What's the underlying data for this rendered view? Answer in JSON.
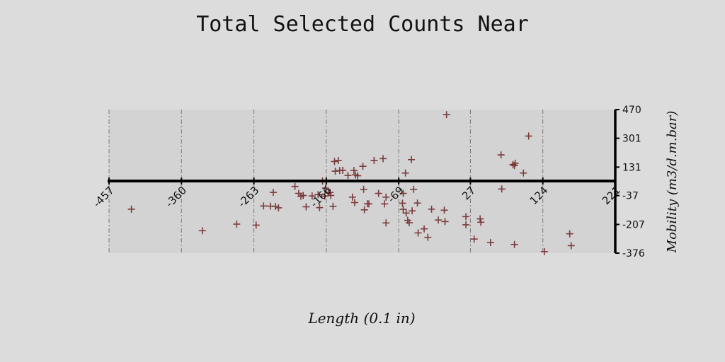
{
  "chart_data": {
    "type": "scatter",
    "title": "Total Selected Counts Near",
    "xlabel": "Length (0.1 in)",
    "ylabel": "Mobility (m3/d.m.bar)",
    "xlim": [
      -457,
      221
    ],
    "ylim": [
      -376,
      470
    ],
    "xticks": [
      -457,
      -360,
      -263,
      -166,
      -69,
      27,
      124,
      221
    ],
    "xtick_labels": [
      "-457",
      "-360",
      "-263",
      "-166",
      "-69",
      "27",
      "124",
      "221"
    ],
    "yticks": [
      470,
      301,
      131,
      -37,
      -207,
      -376
    ],
    "ytick_labels": [
      "470",
      "301",
      "131",
      "-37",
      "-207",
      "-376"
    ],
    "grid": {
      "x": true,
      "y": false
    },
    "marker": "+",
    "colors": {
      "background": "#dcdcdc",
      "plot_area": "#d3d3d3",
      "points": "#7a3b3b",
      "axis": "#000000",
      "grid": "#777777"
    },
    "series": [
      {
        "values": [
          [
            -427,
            -117
          ],
          [
            -332,
            -244
          ],
          [
            -286,
            -205
          ],
          [
            -260,
            -211
          ],
          [
            -250,
            -98
          ],
          [
            -241,
            -99
          ],
          [
            -237,
            -18
          ],
          [
            -234,
            -101
          ],
          [
            -230,
            -109
          ],
          [
            -208,
            17
          ],
          [
            -203,
            -24
          ],
          [
            -200,
            -41
          ],
          [
            -197,
            -36
          ],
          [
            -193,
            -103
          ],
          [
            -185,
            -39
          ],
          [
            -177,
            -31
          ],
          [
            -175,
            -108
          ],
          [
            -171,
            49
          ],
          [
            -168,
            -40
          ],
          [
            -167,
            7
          ],
          [
            -163,
            -20
          ],
          [
            -161,
            -18
          ],
          [
            -160,
            -36
          ],
          [
            -157,
            -100
          ],
          [
            -155,
            164
          ],
          [
            -154,
            107
          ],
          [
            -150,
            170
          ],
          [
            -148,
            111
          ],
          [
            -144,
            112
          ],
          [
            -137,
            82
          ],
          [
            -131,
            -46
          ],
          [
            -128,
            -78
          ],
          [
            -129,
            111
          ],
          [
            -127,
            85
          ],
          [
            -124,
            80
          ],
          [
            -117,
            136
          ],
          [
            -116,
            0
          ],
          [
            -115,
            -121
          ],
          [
            -111,
            -85
          ],
          [
            -109,
            -86
          ],
          [
            -102,
            170
          ],
          [
            -96,
            -24
          ],
          [
            -90,
            181
          ],
          [
            -86,
            -46
          ],
          [
            -88,
            -86
          ],
          [
            -86,
            -198
          ],
          [
            -63,
            -24
          ],
          [
            -64,
            -82
          ],
          [
            -63,
            -118
          ],
          [
            -60,
            96
          ],
          [
            -59,
            -140
          ],
          [
            -57,
            -183
          ],
          [
            -55,
            -197
          ],
          [
            -52,
            175
          ],
          [
            -51,
            -127
          ],
          [
            -49,
            0
          ],
          [
            -44,
            -81
          ],
          [
            -43,
            -257
          ],
          [
            -35,
            -233
          ],
          [
            -30,
            -283
          ],
          [
            -25,
            -117
          ],
          [
            -16,
            -181
          ],
          [
            -8,
            -123
          ],
          [
            -5,
            440
          ],
          [
            -7,
            -190
          ],
          [
            21,
            -209
          ],
          [
            21,
            -161
          ],
          [
            32,
            -293
          ],
          [
            40,
            -174
          ],
          [
            41,
            -194
          ],
          [
            54,
            -314
          ],
          [
            69,
            2
          ],
          [
            68,
            203
          ],
          [
            84,
            146
          ],
          [
            86,
            140
          ],
          [
            87,
            154
          ],
          [
            86,
            -325
          ],
          [
            98,
            96
          ],
          [
            105,
            314
          ],
          [
            126,
            -367
          ],
          [
            160,
            -262
          ],
          [
            162,
            -332
          ]
        ]
      }
    ]
  }
}
